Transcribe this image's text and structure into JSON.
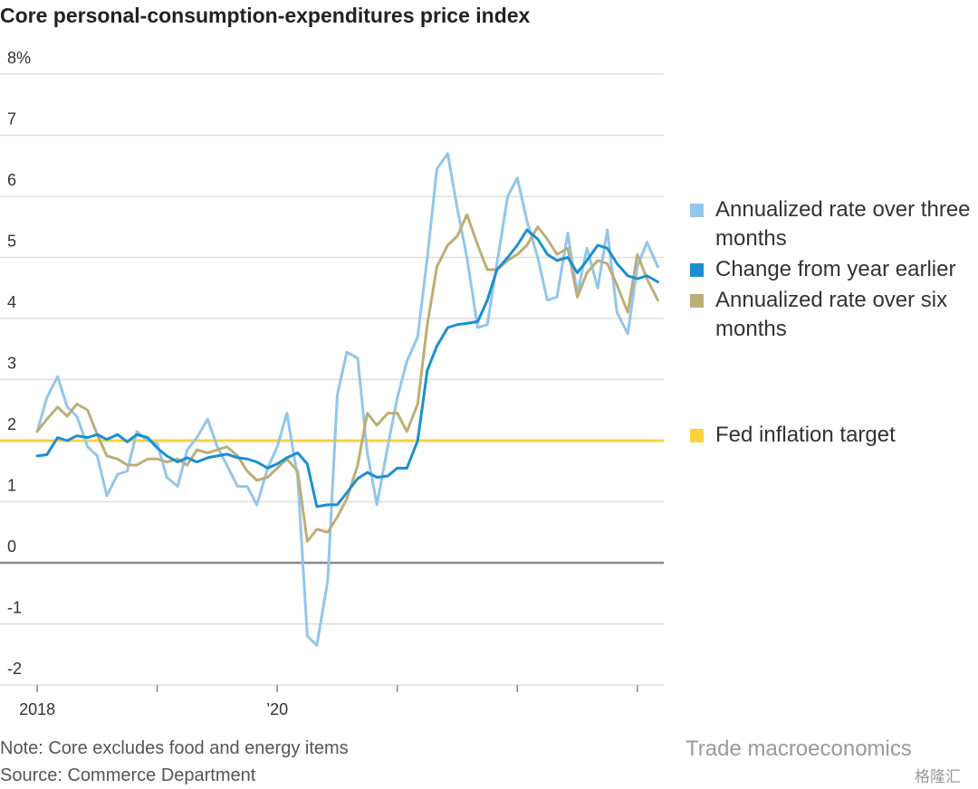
{
  "chart_data": {
    "type": "line",
    "title": "Core personal-consumption-expenditures price index",
    "note": "Note: Core excludes food and energy items",
    "source": "Source: Commerce Department",
    "watermark": "Trade macroeconomics",
    "logo_text": "格隆汇",
    "x": [
      2018,
      2018.08,
      2018.17,
      2018.25,
      2018.33,
      2018.42,
      2018.5,
      2018.58,
      2018.67,
      2018.75,
      2018.83,
      2018.92,
      2019,
      2019.08,
      2019.17,
      2019.25,
      2019.33,
      2019.42,
      2019.5,
      2019.58,
      2019.67,
      2019.75,
      2019.83,
      2019.92,
      2020,
      2020.08,
      2020.17,
      2020.25,
      2020.33,
      2020.42,
      2020.5,
      2020.58,
      2020.67,
      2020.75,
      2020.83,
      2020.92,
      2021,
      2021.08,
      2021.17,
      2021.25,
      2021.33,
      2021.42,
      2021.5,
      2021.58,
      2021.67,
      2021.75,
      2021.83,
      2021.92,
      2022,
      2022.08,
      2022.17,
      2022.25,
      2022.33,
      2022.42,
      2022.5,
      2022.58,
      2022.67,
      2022.75,
      2022.83,
      2022.92,
      2023,
      2023.08,
      2023.17
    ],
    "series": [
      {
        "name": "Annualized rate over three months",
        "color": "#93c6ea",
        "values": [
          2.15,
          2.7,
          3.05,
          2.55,
          2.4,
          1.9,
          1.75,
          1.1,
          1.45,
          1.5,
          2.15,
          2.0,
          1.95,
          1.4,
          1.25,
          1.85,
          2.05,
          2.35,
          1.9,
          1.6,
          1.25,
          1.25,
          0.95,
          1.55,
          1.9,
          2.45,
          1.4,
          -1.2,
          -1.35,
          -0.3,
          2.75,
          3.45,
          3.35,
          1.8,
          0.95,
          1.9,
          2.7,
          3.3,
          3.7,
          5.0,
          6.45,
          6.7,
          5.8,
          5.0,
          3.85,
          3.9,
          4.9,
          6.0,
          6.3,
          5.6,
          5.0,
          4.3,
          4.35,
          5.4,
          4.4,
          5.15,
          4.5,
          5.45,
          4.1,
          3.75,
          4.85,
          5.25,
          4.85
        ]
      },
      {
        "name": "Change from year earlier",
        "color": "#1a8fd2",
        "values": [
          1.75,
          1.77,
          2.05,
          2.0,
          2.08,
          2.05,
          2.1,
          2.02,
          2.1,
          1.98,
          2.1,
          2.05,
          1.88,
          1.75,
          1.65,
          1.72,
          1.65,
          1.72,
          1.75,
          1.78,
          1.72,
          1.7,
          1.65,
          1.55,
          1.62,
          1.72,
          1.8,
          1.62,
          0.92,
          0.95,
          0.95,
          1.15,
          1.38,
          1.48,
          1.4,
          1.42,
          1.55,
          1.55,
          2.0,
          3.15,
          3.55,
          3.85,
          3.9,
          3.92,
          3.95,
          4.3,
          4.8,
          5.0,
          5.2,
          5.45,
          5.3,
          5.05,
          4.95,
          5.0,
          4.75,
          4.95,
          5.2,
          5.15,
          4.9,
          4.7,
          4.65,
          4.7,
          4.6
        ]
      },
      {
        "name": "Annualized rate over six months",
        "color": "#bcae77",
        "values": [
          2.15,
          2.35,
          2.55,
          2.4,
          2.6,
          2.5,
          2.1,
          1.75,
          1.7,
          1.6,
          1.6,
          1.7,
          1.7,
          1.65,
          1.7,
          1.6,
          1.85,
          1.8,
          1.85,
          1.9,
          1.75,
          1.5,
          1.35,
          1.4,
          1.55,
          1.7,
          1.5,
          0.35,
          0.55,
          0.5,
          0.75,
          1.05,
          1.6,
          2.45,
          2.25,
          2.45,
          2.45,
          2.15,
          2.6,
          3.9,
          4.85,
          5.2,
          5.35,
          5.7,
          5.2,
          4.8,
          4.8,
          4.95,
          5.05,
          5.2,
          5.5,
          5.3,
          5.05,
          5.15,
          4.35,
          4.75,
          4.95,
          4.9,
          4.55,
          4.1,
          5.05,
          4.65,
          4.3
        ]
      }
    ],
    "reference_lines": [
      {
        "name": "Fed inflation target",
        "value": 2,
        "color": "#fcd23a"
      }
    ],
    "xlim": [
      2017.69,
      2023.22
    ],
    "xticks": [
      2018,
      {
        "value": 2019,
        "label": null
      },
      {
        "value": 2020,
        "label": "’20"
      },
      {
        "value": 2021,
        "label": null
      },
      {
        "value": 2022,
        "label": null
      },
      {
        "value": 2023,
        "label": null
      }
    ],
    "ylim": [
      -2,
      8
    ],
    "yticks": [
      -2,
      -1,
      0,
      1,
      2,
      3,
      4,
      5,
      6,
      7,
      {
        "value": 8,
        "label": "8%"
      }
    ],
    "grid": true,
    "zero_line": true
  }
}
